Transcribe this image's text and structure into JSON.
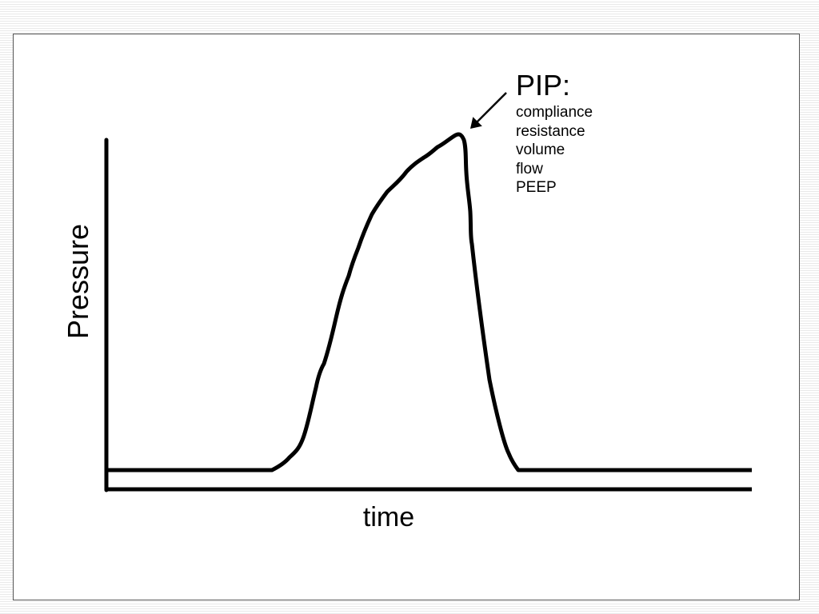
{
  "axes": {
    "ylabel": "Pressure",
    "xlabel": "time"
  },
  "annotation": {
    "title": "PIP:",
    "factors": [
      "compliance",
      "resistance",
      "volume",
      "flow",
      "PEEP"
    ]
  },
  "colors": {
    "line": "#000000",
    "background": "#ffffff",
    "border": "#555555"
  },
  "icons": {
    "pointer": "arrow-pointing-to-peak"
  }
}
